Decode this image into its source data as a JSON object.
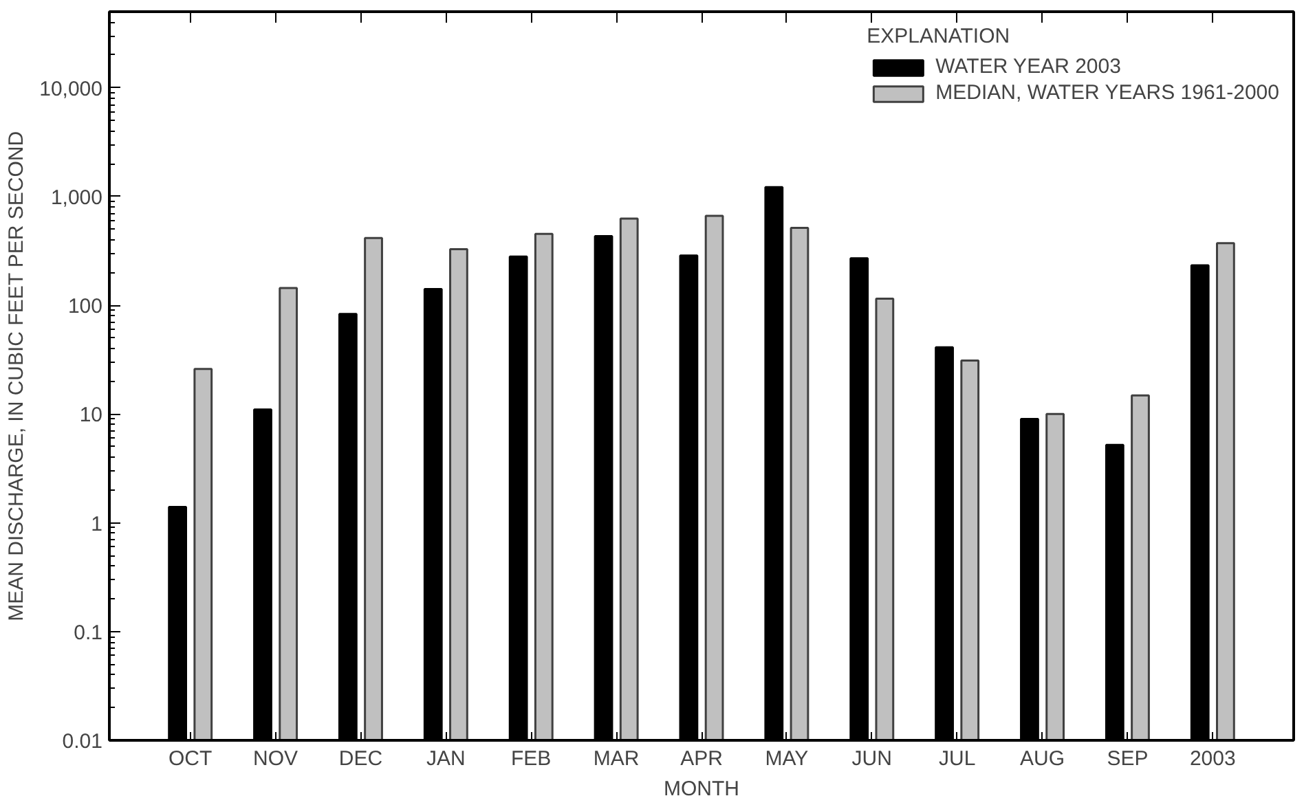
{
  "chart_data": {
    "type": "bar",
    "xlabel": "MONTH",
    "ylabel": "MEAN DISCHARGE, IN CUBIC FEET PER SECOND",
    "legend_title": "EXPLANATION",
    "categories": [
      "OCT",
      "NOV",
      "DEC",
      "JAN",
      "FEB",
      "MAR",
      "APR",
      "MAY",
      "JUN",
      "JUL",
      "AUG",
      "SEP",
      "2003"
    ],
    "series": [
      {
        "name": "WATER YEAR 2003",
        "color": "#000000",
        "values": [
          1.4,
          11,
          83,
          141,
          280,
          432,
          286,
          1220,
          270,
          41,
          9.0,
          5.2,
          233
        ]
      },
      {
        "name": "MEDIAN, WATER YEARS 1961-2000",
        "color": "#c0c0c0",
        "values": [
          26,
          144,
          415,
          328,
          453,
          627,
          663,
          515,
          115,
          31,
          10,
          14.8,
          372
        ]
      }
    ],
    "log": true,
    "ylim": [
      0.01,
      50000
    ],
    "yticks": [
      0.01,
      0.1,
      1,
      10,
      {
        "value": 100,
        "label": "100"
      },
      {
        "value": 1000,
        "label": "1,000"
      },
      {
        "value": 10000,
        "label": "10,000"
      }
    ],
    "grid": false,
    "legend": "top right"
  }
}
